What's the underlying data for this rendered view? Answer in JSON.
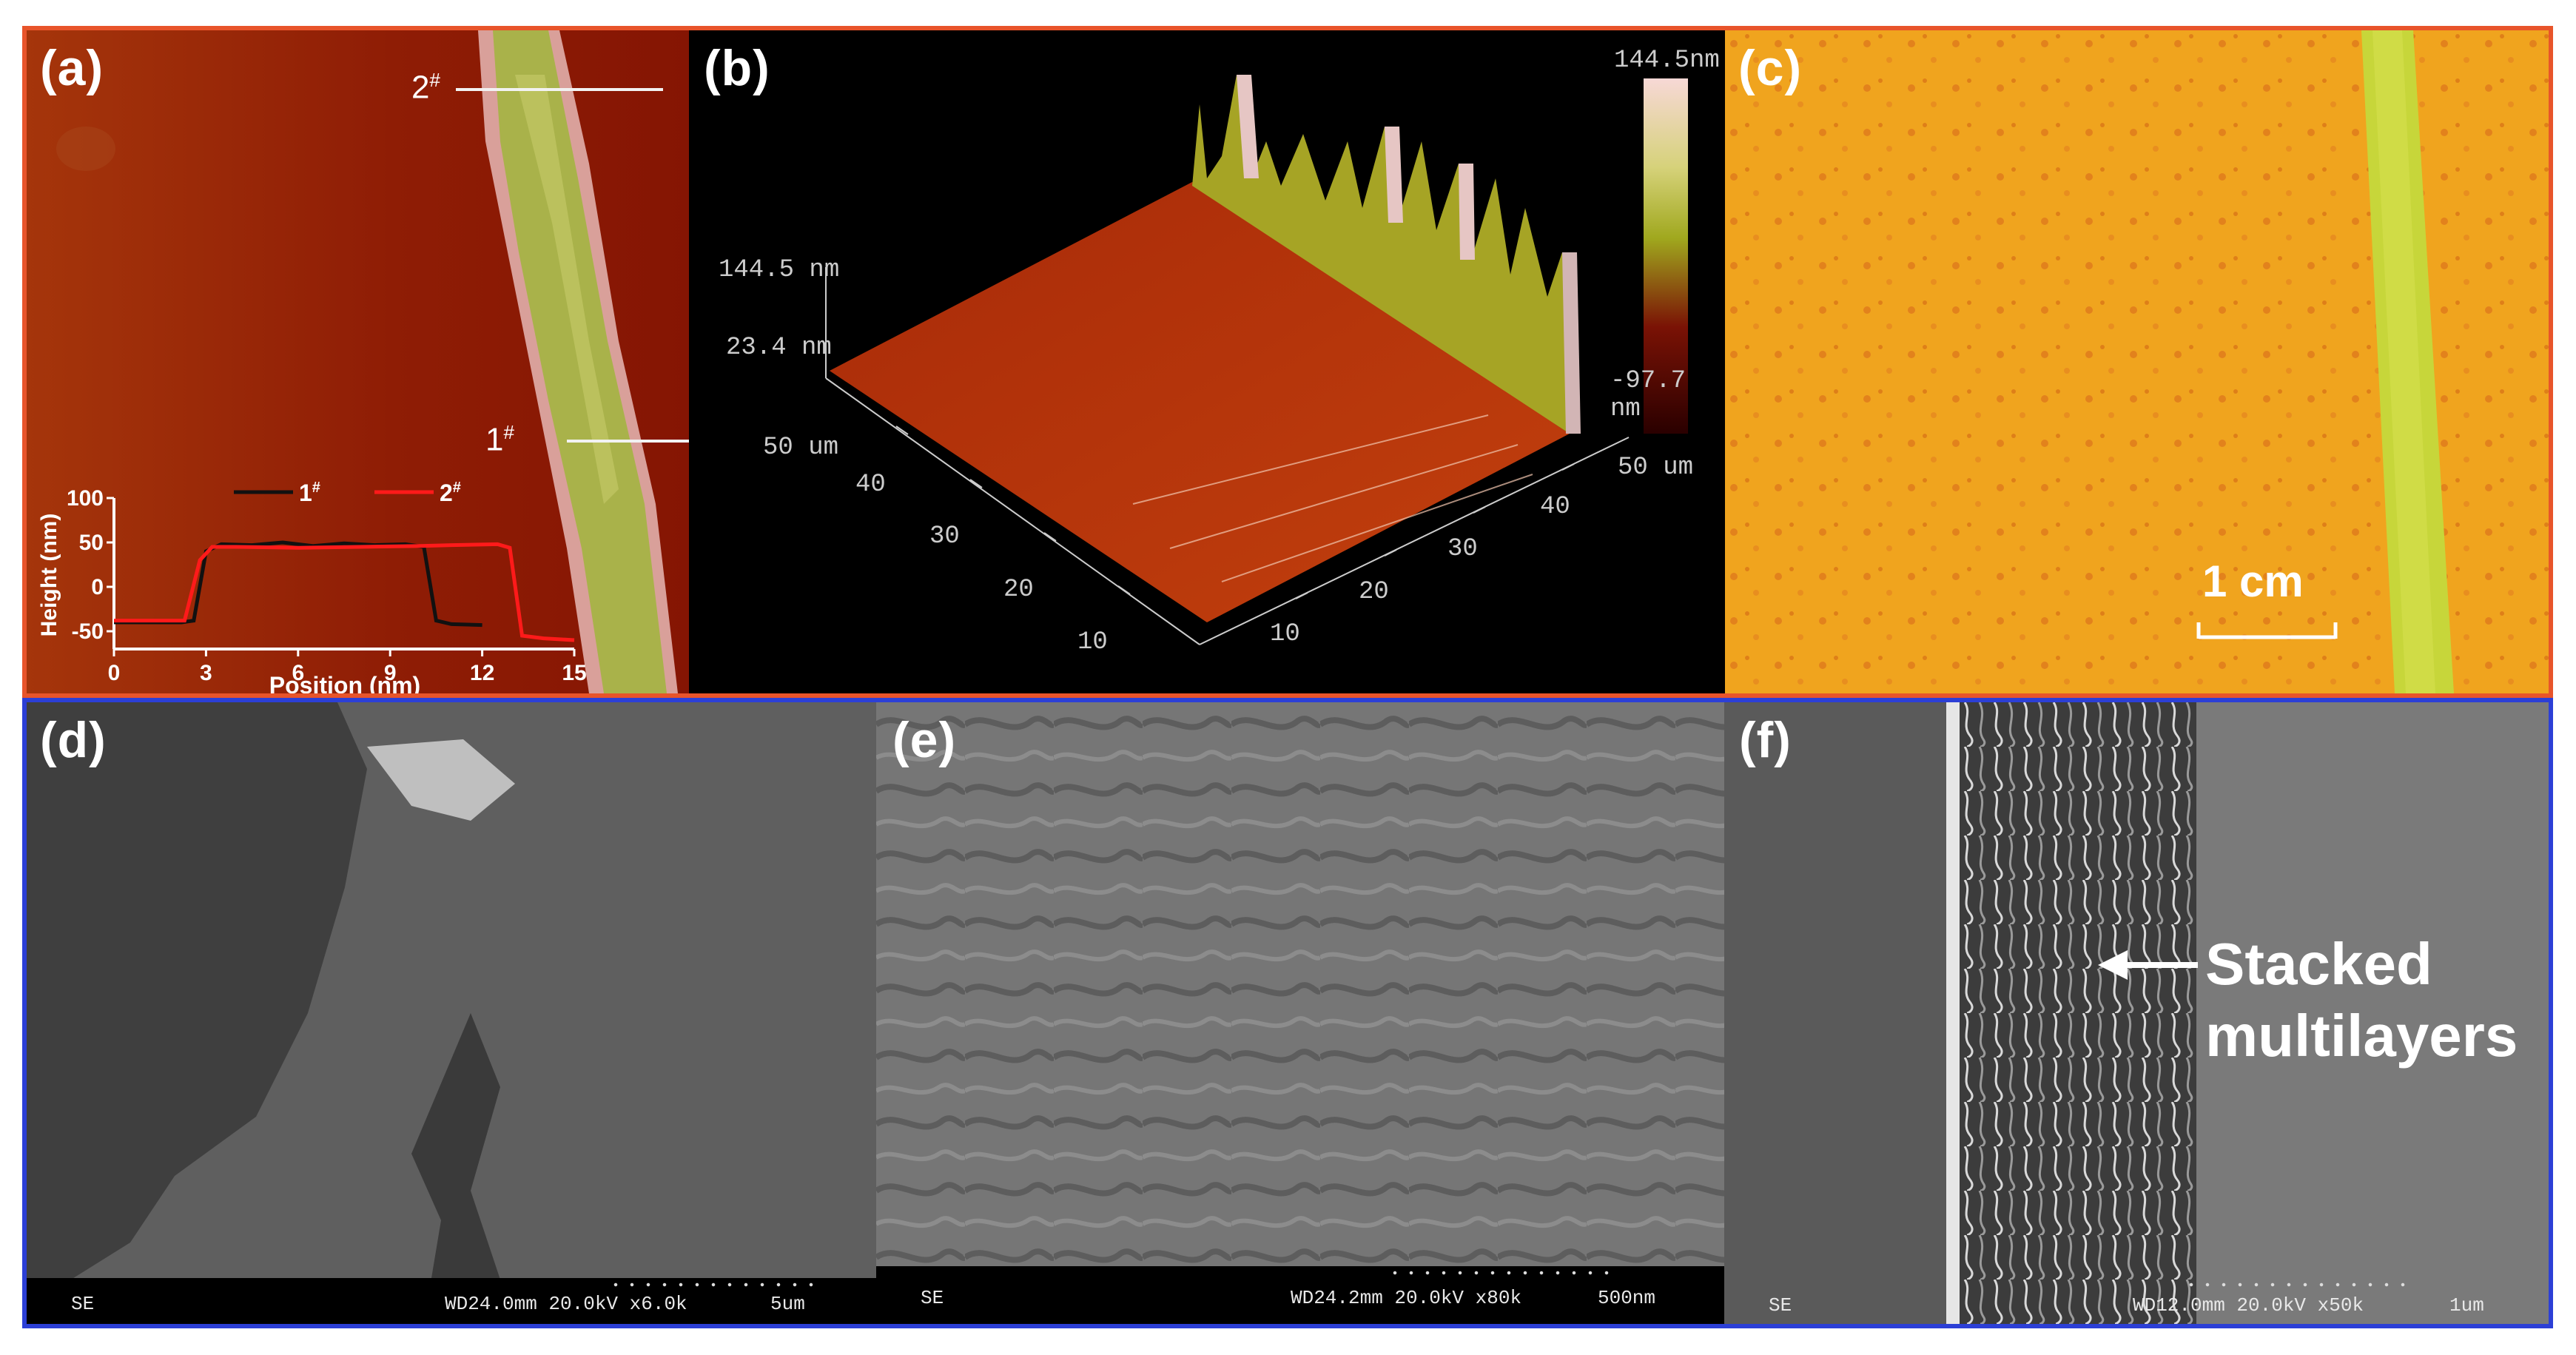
{
  "panels": {
    "a": {
      "label": "(a)",
      "line1_label": "1",
      "line2_label": "2",
      "marker": "#",
      "inset": {
        "ylabel": "Height (nm)",
        "xlabel": "Position (nm)",
        "yticks": [
          "100",
          "50",
          "0",
          "-50"
        ],
        "xticks": [
          "0",
          "3",
          "6",
          "9",
          "12",
          "15"
        ],
        "legend": [
          {
            "name": "1",
            "sup": "#",
            "color": "#111111"
          },
          {
            "name": "2",
            "sup": "#",
            "color": "#ff1a1a"
          }
        ]
      }
    },
    "b": {
      "label": "(b)",
      "colorbar_max": "144.5nm",
      "colorbar_min": "-97.7 nm",
      "z_top": "144.5 nm",
      "z_mid": "23.4 nm",
      "axis_left_end": "50 um",
      "axis_right_end": "50 um",
      "left_ticks": [
        "40",
        "30",
        "20",
        "10"
      ],
      "right_ticks": [
        "40",
        "30",
        "20",
        "10"
      ]
    },
    "c": {
      "label": "(c)",
      "scale_bar": "1 cm"
    },
    "d": {
      "label": "(d)",
      "sem_mode": "SE",
      "sem_info": "WD24.0mm 20.0kV x6.0k",
      "sem_scale": "5um"
    },
    "e": {
      "label": "(e)",
      "sem_mode": "SE",
      "sem_info": "WD24.2mm 20.0kV x80k",
      "sem_scale": "500nm"
    },
    "f": {
      "label": "(f)",
      "annotation_line1": "Stacked",
      "annotation_line2": "multilayers",
      "sem_mode": "SE",
      "sem_info": "WD12.0mm 20.0kV x50k",
      "sem_scale": "1um"
    }
  },
  "chart_data": {
    "type": "line",
    "xlabel": "Position (nm)",
    "ylabel": "Height (nm)",
    "xlim": [
      0,
      15
    ],
    "ylim": [
      -70,
      100
    ],
    "series": [
      {
        "name": "1#",
        "color": "#111111",
        "x": [
          0,
          2.2,
          2.6,
          3.0,
          3.5,
          4.5,
          5.5,
          6.5,
          7.5,
          8.5,
          9.5,
          10.1,
          10.5,
          11.0,
          12.0
        ],
        "y": [
          -40,
          -40,
          -38,
          40,
          48,
          47,
          50,
          46,
          49,
          47,
          48,
          45,
          -38,
          -42,
          -43
        ]
      },
      {
        "name": "2#",
        "color": "#ff1a1a",
        "x": [
          0,
          2.3,
          2.8,
          3.2,
          4,
          6,
          8,
          10,
          11,
          12.5,
          12.9,
          13.3,
          14,
          15
        ],
        "y": [
          -38,
          -38,
          30,
          45,
          45,
          44,
          45,
          46,
          47,
          48,
          44,
          -55,
          -58,
          -60
        ]
      }
    ]
  }
}
